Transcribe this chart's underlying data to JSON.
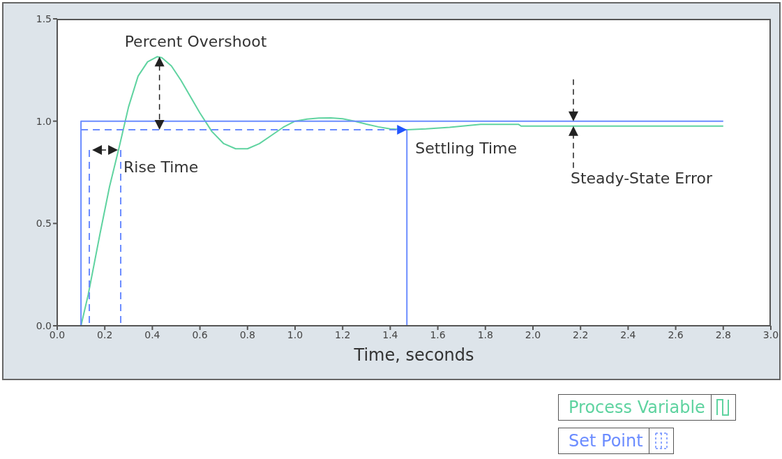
{
  "chart_data": {
    "type": "line",
    "xlabel": "Time, seconds",
    "xlim": [
      0,
      3
    ],
    "ylim": [
      0,
      1.5
    ],
    "xticks": [
      {
        "value": 0,
        "label": "0.0"
      },
      {
        "value": 0.2,
        "label": "0.2"
      },
      {
        "value": 0.4,
        "label": "0.4"
      },
      {
        "value": 0.6,
        "label": "0.6"
      },
      {
        "value": 0.8,
        "label": "0.8"
      },
      {
        "value": 1,
        "label": "1.0"
      },
      {
        "value": 1.2,
        "label": "1.2"
      },
      {
        "value": 1.4,
        "label": "1.4"
      },
      {
        "value": 1.6,
        "label": "1.6"
      },
      {
        "value": 1.8,
        "label": "1.8"
      },
      {
        "value": 2,
        "label": "2.0"
      },
      {
        "value": 2.2,
        "label": "2.2"
      },
      {
        "value": 2.4,
        "label": "2.4"
      },
      {
        "value": 2.6,
        "label": "2.6"
      },
      {
        "value": 2.8,
        "label": "2.8"
      },
      {
        "value": 3,
        "label": "3.0"
      }
    ],
    "yticks": [
      {
        "value": 0,
        "label": "0.0"
      },
      {
        "value": 0.5,
        "label": "0.5"
      },
      {
        "value": 1,
        "label": "1.0"
      },
      {
        "value": 1.5,
        "label": "1.5"
      }
    ],
    "grid": false,
    "legend": "bottom right",
    "marker": "none",
    "line_style": "solid",
    "series": [
      {
        "name": "Process Variable",
        "color": "#5fd3a0",
        "x": [
          0,
          0.1,
          0.13,
          0.18,
          0.22,
          0.26,
          0.3,
          0.34,
          0.38,
          0.42,
          0.44,
          0.48,
          0.52,
          0.56,
          0.6,
          0.65,
          0.7,
          0.75,
          0.8,
          0.85,
          0.9,
          0.95,
          1.0,
          1.05,
          1.1,
          1.15,
          1.2,
          1.25,
          1.3,
          1.35,
          1.4,
          1.47,
          1.55,
          1.65,
          1.78,
          1.94,
          1.95,
          2.8
        ],
        "values": [
          0,
          0,
          0.15,
          0.45,
          0.68,
          0.87,
          1.07,
          1.22,
          1.29,
          1.315,
          1.31,
          1.27,
          1.2,
          1.12,
          1.04,
          0.95,
          0.89,
          0.865,
          0.865,
          0.89,
          0.93,
          0.97,
          1.0,
          1.01,
          1.015,
          1.016,
          1.012,
          1.0,
          0.985,
          0.972,
          0.962,
          0.958,
          0.962,
          0.97,
          0.984,
          0.984,
          0.976,
          0.976
        ]
      },
      {
        "name": "Set Point",
        "color": "#6b8cff",
        "x": [
          0,
          0.1,
          0.1,
          2.8
        ],
        "values": [
          0,
          0,
          1,
          1
        ]
      },
      {
        "color": "#6b8cff",
        "line_style": "dashed",
        "x": [
          0.1,
          1.47
        ],
        "values": [
          0.958,
          0.958
        ]
      },
      {
        "color": "#6b8cff",
        "line_style": "dashed",
        "x": [
          0.135,
          0.135
        ],
        "values": [
          0.859,
          0
        ]
      },
      {
        "color": "#6b8cff",
        "line_style": "dashed",
        "x": [
          0.267,
          0.267
        ],
        "values": [
          0.859,
          0
        ]
      },
      {
        "color": "#6b8cff",
        "x": [
          1.47,
          1.47
        ],
        "values": [
          0,
          0.958
        ]
      }
    ],
    "annotations": [
      {
        "text": "Percent Overshoot",
        "x": 0.43,
        "y": 1.315
      },
      {
        "text": "Rise Time",
        "x": 0.267,
        "y": 0.859
      },
      {
        "text": "Settling Time",
        "x": 1.47,
        "y": 0.958
      },
      {
        "text": "Steady-State Error",
        "x": 2.17,
        "y": 0.976
      }
    ]
  }
}
